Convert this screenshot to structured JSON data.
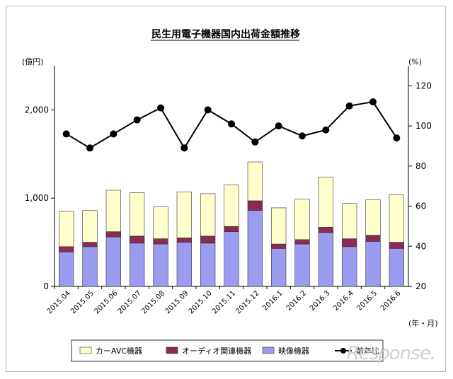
{
  "chart_data": {
    "type": "bar+line",
    "title": "民生用電子機器国内出荷金額推移",
    "ylabel_left": "(億円)",
    "ylabel_right": "(%)",
    "xlabel": "(年・月)",
    "categories": [
      "2015.04",
      "2015.05",
      "2015.06",
      "2015.07",
      "2015.08",
      "2015.09",
      "2015.10",
      "2015.11",
      "2015.12",
      "2016.1",
      "2016.2",
      "2016.3",
      "2016.4",
      "2016.5",
      "2016.6"
    ],
    "left_ylim": [
      0,
      2500
    ],
    "left_ticks": [
      0,
      1000,
      2000
    ],
    "left_tick_labels": [
      "0",
      "1,000",
      "2,000"
    ],
    "right_ylim": [
      20,
      130
    ],
    "right_ticks": [
      20,
      40,
      60,
      80,
      100,
      120
    ],
    "right_tick_labels": [
      "20",
      "40",
      "60",
      "80",
      "100",
      "120"
    ],
    "series": [
      {
        "name": "映像機器",
        "kind": "bar",
        "color": "#9b9bf0",
        "values": [
          390,
          450,
          560,
          490,
          480,
          500,
          490,
          620,
          860,
          430,
          480,
          610,
          450,
          510,
          430
        ]
      },
      {
        "name": "オーディオ関連機器",
        "kind": "bar",
        "color": "#8b2a52",
        "values": [
          60,
          50,
          60,
          80,
          60,
          50,
          80,
          60,
          110,
          50,
          50,
          60,
          90,
          70,
          70
        ]
      },
      {
        "name": "カーAVC機器",
        "kind": "bar",
        "color": "#ffffcc",
        "values": [
          400,
          360,
          470,
          490,
          360,
          520,
          480,
          470,
          440,
          410,
          460,
          570,
          400,
          400,
          540
        ]
      },
      {
        "name": "前年比",
        "kind": "line",
        "color": "#000000",
        "values": [
          96,
          89,
          96,
          103,
          109,
          89,
          108,
          101,
          92,
          100,
          95,
          98,
          110,
          112,
          94
        ]
      }
    ],
    "legend": [
      "カーAVC機器",
      "オーディオ関連機器",
      "映像機器",
      "前年比"
    ],
    "legend_position": "bottom"
  },
  "watermark": "Response."
}
